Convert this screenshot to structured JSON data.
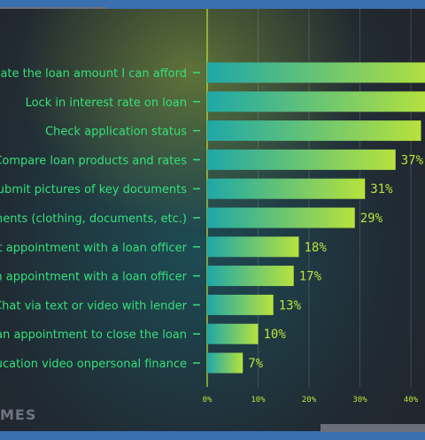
{
  "brand": "MES",
  "colors": {
    "bar_start": "#1ea7a8",
    "bar_end": "#b7e23c",
    "label": "#35e07a",
    "value": "#b9e43a"
  },
  "chart_data": {
    "type": "bar",
    "orientation": "horizontal",
    "categories": [
      "uate the loan amount I can afford",
      "Lock in interest rate on loan",
      "Check application status",
      "Compare loan products and rates",
      "ubmit pictures of key documents",
      "ments (clothing, documents, etc.)",
      "nt appointment with a loan officer",
      "n appointment with a loan officer",
      "Chat via text or video with lender",
      "an appointment to close the loan",
      "ucation video onpersonal finance"
    ],
    "values": [
      45,
      44,
      42,
      37,
      31,
      29,
      18,
      17,
      13,
      10,
      7
    ],
    "value_labels": [
      "",
      "",
      "",
      "37%",
      "31%",
      "29%",
      "18%",
      "17%",
      "13%",
      "10%",
      "7%"
    ],
    "xticks": [
      "0%",
      "10%",
      "20%",
      "30%",
      "40%"
    ],
    "xlim": [
      0,
      45
    ],
    "grid": true,
    "title": "",
    "xlabel": "",
    "ylabel": ""
  }
}
